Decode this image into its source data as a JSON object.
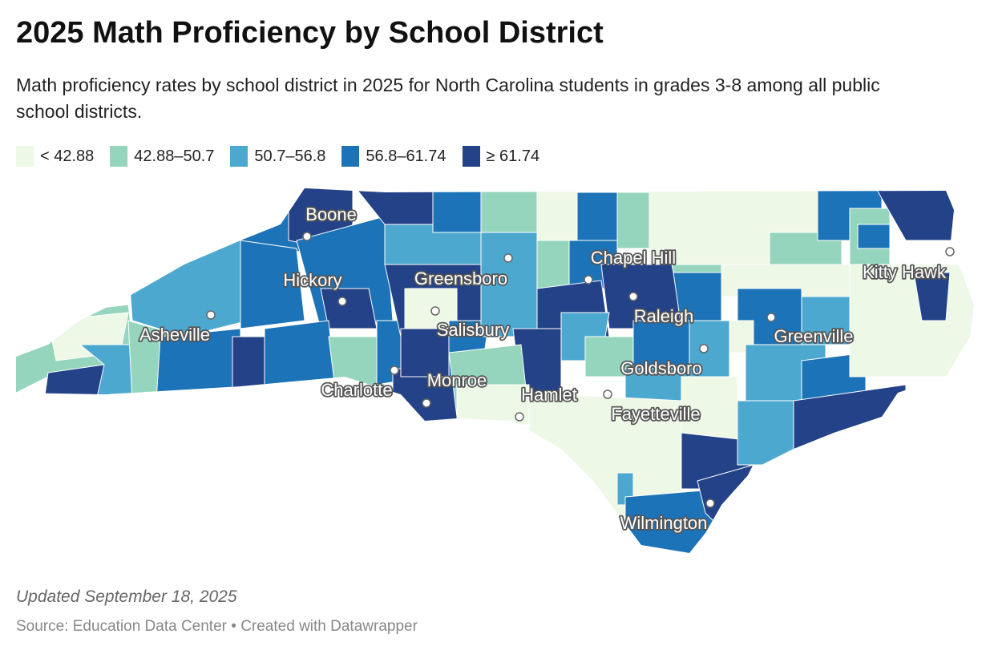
{
  "header": {
    "title": "2025 Math Proficiency by School District",
    "subtitle": "Math proficiency rates by school district in 2025 for North Carolina students in grades 3-8 among all public school districts."
  },
  "legend": [
    {
      "label": "< 42.88",
      "color": "#eef8e6"
    },
    {
      "label": "42.88–50.7",
      "color": "#95d5bd"
    },
    {
      "label": "50.7–56.8",
      "color": "#4da8cf"
    },
    {
      "label": "56.8–61.74",
      "color": "#1c73b7"
    },
    {
      "label": "≥ 61.74",
      "color": "#234288"
    }
  ],
  "cities": [
    {
      "name": "Boone"
    },
    {
      "name": "Chapel Hill"
    },
    {
      "name": "Kitty Hawk"
    },
    {
      "name": "Hickory"
    },
    {
      "name": "Greensboro"
    },
    {
      "name": "Raleigh"
    },
    {
      "name": "Asheville"
    },
    {
      "name": "Salisbury"
    },
    {
      "name": "Greenville"
    },
    {
      "name": "Goldsboro"
    },
    {
      "name": "Monroe"
    },
    {
      "name": "Charlotte"
    },
    {
      "name": "Hamlet"
    },
    {
      "name": "Fayetteville"
    },
    {
      "name": "Wilmington"
    }
  ],
  "footer": {
    "updated": "Updated September 18, 2025",
    "source": "Source: Education Data Center • Created with Datawrapper"
  }
}
